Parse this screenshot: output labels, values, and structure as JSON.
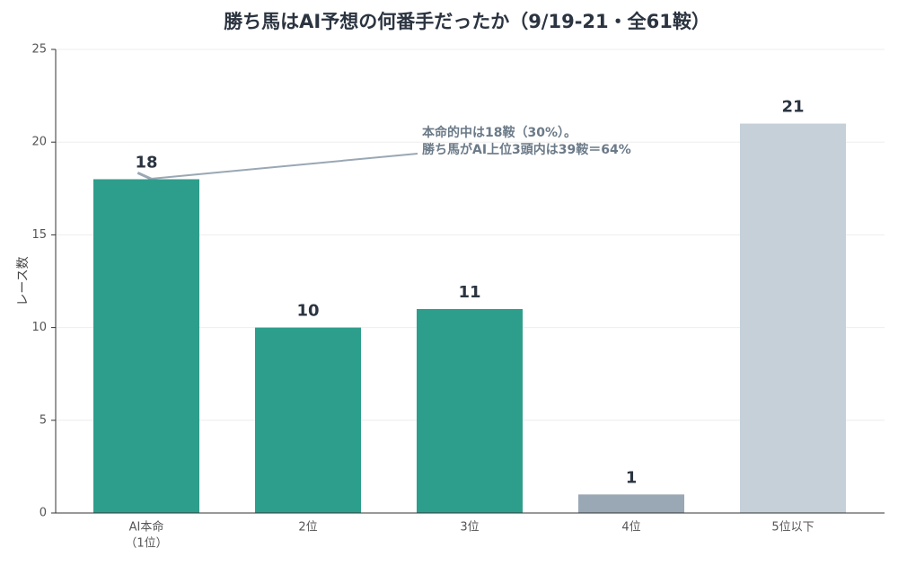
{
  "chart_data": {
    "type": "bar",
    "title": "勝ち馬はAI予想の何番手だったか（9/19-21・全61鞍）",
    "y_label": "レース数",
    "categories": [
      [
        "AI本命",
        "（1位）"
      ],
      "2位",
      "3位",
      "4位",
      "5位以下"
    ],
    "values": [
      18,
      10,
      11,
      1,
      21
    ],
    "colors": [
      "#2e9e8c",
      "#2e9e8c",
      "#2e9e8c",
      "#9aa7b4",
      "#c5d0d9"
    ],
    "ylim": [
      0,
      25
    ],
    "yticks": [
      0,
      5,
      10,
      15,
      20,
      25
    ],
    "grid": true,
    "annotation": [
      "本命的中は18鞍（30%）。",
      "勝ち馬がAI上位3頭内は39鞍＝64%"
    ]
  }
}
